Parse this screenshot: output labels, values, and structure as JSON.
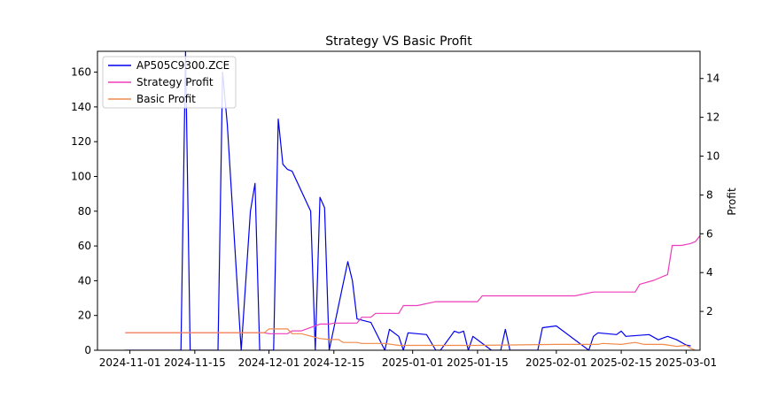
{
  "chart_data": {
    "type": "line",
    "title": "Strategy VS Basic Profit",
    "xlabel": "",
    "ylabel_left": "",
    "ylabel_right": "Profit",
    "x_ticks": [
      "2024-11-01",
      "2024-11-15",
      "2024-12-01",
      "2024-12-15",
      "2025-01-01",
      "2025-01-15",
      "2025-02-01",
      "2025-02-15",
      "2025-03-01"
    ],
    "x_range": [
      "2024-10-25",
      "2025-03-04"
    ],
    "ylim_left": [
      0,
      172
    ],
    "ylim_right": [
      0,
      15.4
    ],
    "yticks_left": [
      0,
      20,
      40,
      60,
      80,
      100,
      120,
      140,
      160
    ],
    "yticks_right": [
      2,
      4,
      6,
      8,
      10,
      12,
      14
    ],
    "legend_position": "upper-left",
    "grid": false,
    "colors": {
      "AP505C9300.ZCE": "#0000ee",
      "Strategy Profit": "#ee3dbb",
      "Basic Profit": "#f08a4b"
    },
    "series": [
      {
        "name": "AP505C9300.ZCE",
        "axis": "left",
        "points": [
          [
            "2024-10-31",
            0
          ],
          [
            "2024-11-12",
            0
          ],
          [
            "2024-11-13",
            172
          ],
          [
            "2024-11-14",
            0
          ],
          [
            "2024-11-20",
            0
          ],
          [
            "2024-11-21",
            160
          ],
          [
            "2024-11-22",
            130
          ],
          [
            "2024-11-25",
            0
          ],
          [
            "2024-11-27",
            80
          ],
          [
            "2024-11-28",
            96
          ],
          [
            "2024-11-29",
            0
          ],
          [
            "2024-12-02",
            0
          ],
          [
            "2024-12-03",
            133
          ],
          [
            "2024-12-04",
            107
          ],
          [
            "2024-12-05",
            104
          ],
          [
            "2024-12-06",
            103
          ],
          [
            "2024-12-10",
            80
          ],
          [
            "2024-12-11",
            0
          ],
          [
            "2024-12-12",
            88
          ],
          [
            "2024-12-13",
            82
          ],
          [
            "2024-12-14",
            0
          ],
          [
            "2024-12-18",
            51
          ],
          [
            "2024-12-19",
            40
          ],
          [
            "2024-12-20",
            18
          ],
          [
            "2024-12-23",
            16
          ],
          [
            "2024-12-26",
            0
          ],
          [
            "2024-12-27",
            12
          ],
          [
            "2024-12-29",
            8
          ],
          [
            "2024-12-30",
            0
          ],
          [
            "2024-12-31",
            10
          ],
          [
            "2025-01-04",
            9
          ],
          [
            "2025-01-06",
            0
          ],
          [
            "2025-01-07",
            0
          ],
          [
            "2025-01-10",
            11
          ],
          [
            "2025-01-11",
            10
          ],
          [
            "2025-01-12",
            11
          ],
          [
            "2025-01-13",
            0
          ],
          [
            "2025-01-14",
            8
          ],
          [
            "2025-01-18",
            0
          ],
          [
            "2025-01-20",
            0
          ],
          [
            "2025-01-21",
            12
          ],
          [
            "2025-01-22",
            0
          ],
          [
            "2025-01-28",
            0
          ],
          [
            "2025-01-29",
            13
          ],
          [
            "2025-02-01",
            14
          ],
          [
            "2025-02-08",
            0
          ],
          [
            "2025-02-09",
            8
          ],
          [
            "2025-02-10",
            10
          ],
          [
            "2025-02-14",
            9
          ],
          [
            "2025-02-15",
            11
          ],
          [
            "2025-02-16",
            8
          ],
          [
            "2025-02-21",
            9
          ],
          [
            "2025-02-23",
            6
          ],
          [
            "2025-02-25",
            8
          ],
          [
            "2025-02-27",
            6
          ],
          [
            "2025-03-01",
            3
          ],
          [
            "2025-03-02",
            2.5
          ]
        ]
      },
      {
        "name": "Strategy Profit",
        "axis": "right",
        "points": [
          [
            "2024-10-31",
            0.9
          ],
          [
            "2024-11-30",
            0.9
          ],
          [
            "2024-12-01",
            0.85
          ],
          [
            "2024-12-05",
            0.85
          ],
          [
            "2024-12-06",
            1.0
          ],
          [
            "2024-12-08",
            1.0
          ],
          [
            "2024-12-12",
            1.35
          ],
          [
            "2024-12-14",
            1.35
          ],
          [
            "2024-12-15",
            1.4
          ],
          [
            "2024-12-20",
            1.4
          ],
          [
            "2024-12-21",
            1.7
          ],
          [
            "2024-12-23",
            1.7
          ],
          [
            "2024-12-24",
            1.9
          ],
          [
            "2024-12-29",
            1.9
          ],
          [
            "2024-12-30",
            2.3
          ],
          [
            "2025-01-02",
            2.3
          ],
          [
            "2025-01-06",
            2.5
          ],
          [
            "2025-01-15",
            2.5
          ],
          [
            "2025-01-16",
            2.8
          ],
          [
            "2025-02-05",
            2.8
          ],
          [
            "2025-02-09",
            3.0
          ],
          [
            "2025-02-18",
            3.0
          ],
          [
            "2025-02-19",
            3.4
          ],
          [
            "2025-02-22",
            3.6
          ],
          [
            "2025-02-24",
            3.8
          ],
          [
            "2025-02-25",
            3.9
          ],
          [
            "2025-02-26",
            5.4
          ],
          [
            "2025-02-28",
            5.4
          ],
          [
            "2025-03-02",
            5.5
          ],
          [
            "2025-03-03",
            5.6
          ],
          [
            "2025-03-04",
            5.9
          ]
        ]
      },
      {
        "name": "Basic Profit",
        "axis": "right",
        "points": [
          [
            "2024-10-31",
            0.9
          ],
          [
            "2024-11-30",
            0.9
          ],
          [
            "2024-12-01",
            1.1
          ],
          [
            "2024-12-05",
            1.1
          ],
          [
            "2024-12-06",
            0.85
          ],
          [
            "2024-12-08",
            0.85
          ],
          [
            "2024-12-12",
            0.6
          ],
          [
            "2024-12-14",
            0.55
          ],
          [
            "2024-12-16",
            0.55
          ],
          [
            "2024-12-17",
            0.4
          ],
          [
            "2024-12-20",
            0.4
          ],
          [
            "2024-12-21",
            0.35
          ],
          [
            "2024-12-26",
            0.35
          ],
          [
            "2024-12-29",
            0.25
          ],
          [
            "2025-01-15",
            0.25
          ],
          [
            "2025-02-01",
            0.3
          ],
          [
            "2025-02-10",
            0.3
          ],
          [
            "2025-02-11",
            0.35
          ],
          [
            "2025-02-15",
            0.3
          ],
          [
            "2025-02-18",
            0.4
          ],
          [
            "2025-02-20",
            0.3
          ],
          [
            "2025-02-24",
            0.3
          ],
          [
            "2025-02-27",
            0.2
          ],
          [
            "2025-03-01",
            0.25
          ],
          [
            "2025-03-02",
            0.1
          ],
          [
            "2025-03-03",
            0.0
          ]
        ]
      }
    ]
  }
}
